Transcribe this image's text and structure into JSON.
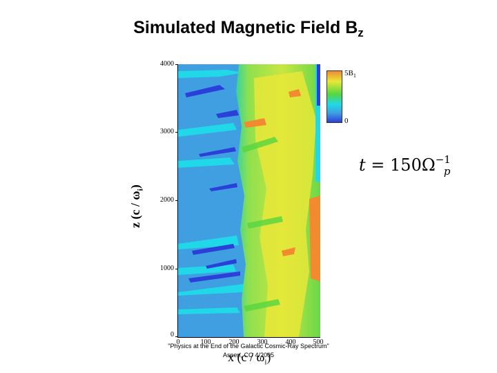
{
  "slide": {
    "title": "Simulated Magnetic Field B",
    "title_subscript": "z"
  },
  "plot": {
    "y_ticks": [
      "4000",
      "3000",
      "2000",
      "1000",
      "0"
    ],
    "x_ticks": [
      "0",
      "100",
      "200",
      "300",
      "400",
      "500"
    ],
    "y_label": "z (c / ω",
    "y_label_subscript": "i",
    "y_label_close": ")",
    "x_label": "x (c / ω",
    "x_label_subscript": "i",
    "x_label_close": ")",
    "colorbar_max": "5B",
    "colorbar_max_subscript": "1",
    "colorbar_min": "0",
    "colors": {
      "background_blue": "#3f9fe0",
      "cyan": "#20d8e8",
      "deep_blue": "#2a40d8",
      "green": "#55d640",
      "yellow": "#e8e838",
      "orange": "#f28a30"
    }
  },
  "equation": {
    "lhs": "t",
    "equals": " = 150Ω",
    "exponent": "−1",
    "subscript": "p"
  },
  "citation": {
    "line1": "\"Physics at the End of the Galactic Cosmic-Ray Spectrum\"",
    "line2": "Aspen, CO 4/2005"
  }
}
